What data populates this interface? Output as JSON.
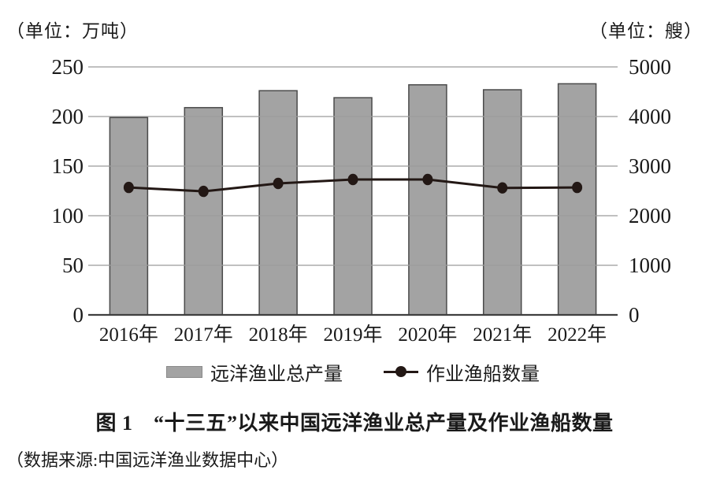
{
  "header": {
    "left_unit": "（单位：万吨）",
    "right_unit": "（单位：艘）"
  },
  "legend": {
    "bar_label": "远洋渔业总产量",
    "line_label": "作业渔船数量"
  },
  "caption": {
    "title": "图 1　“十三五”以来中国远洋渔业总产量及作业渔船数量",
    "source": "（数据来源:中国远洋渔业数据中心）"
  },
  "colors": {
    "bar_fill": "#a3a3a3",
    "bar_border": "#4a4a4a",
    "line": "#231815",
    "grid": "#9b9b9b",
    "axis": "#3f3f3f",
    "text": "#1a1a1a"
  },
  "chart_data": {
    "type": "bar+line",
    "title": "图 1　“十三五”以来中国远洋渔业总产量及作业渔船数量",
    "source": "（数据来源:中国远洋渔业数据中心）",
    "categories": [
      "2016年",
      "2017年",
      "2018年",
      "2019年",
      "2020年",
      "2021年",
      "2022年"
    ],
    "series": [
      {
        "name": "远洋渔业总产量",
        "type": "bar",
        "axis": "left",
        "unit": "万吨",
        "values": [
          199,
          209,
          226,
          219,
          232,
          227,
          233
        ]
      },
      {
        "name": "作业渔船数量",
        "type": "line",
        "axis": "right",
        "unit": "艘",
        "values": [
          2570,
          2490,
          2650,
          2730,
          2730,
          2560,
          2570
        ]
      }
    ],
    "left_axis": {
      "label": "（单位：万吨）",
      "range": [
        0,
        250
      ],
      "ticks": [
        0,
        50,
        100,
        150,
        200,
        250
      ]
    },
    "right_axis": {
      "label": "（单位：艘）",
      "range": [
        0,
        5000
      ],
      "ticks": [
        0,
        1000,
        2000,
        3000,
        4000,
        5000
      ]
    },
    "grid": true,
    "legend_position": "bottom"
  }
}
